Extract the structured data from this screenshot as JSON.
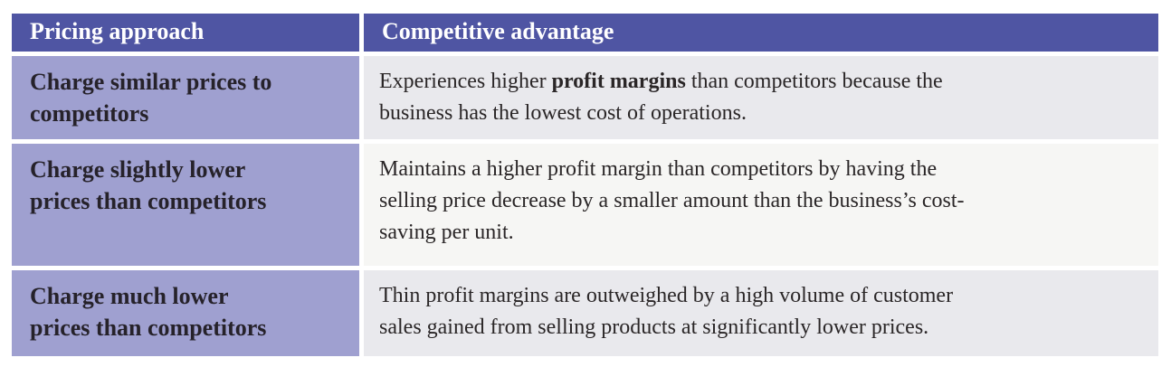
{
  "colors": {
    "header_bg": "#4f55a3",
    "header_text": "#ffffff",
    "approach_bg": "#9fa0d0",
    "approach_text": "#26222a",
    "advantage_bg": "#e9e9ed",
    "advantage_bg_alt": "#f6f6f4",
    "advantage_text": "#2a2627",
    "page_bg": "#ffffff"
  },
  "table": {
    "header": {
      "pricing_approach": "Pricing approach",
      "competitive_advantage": "Competitive advantage"
    },
    "rows": [
      {
        "approach": "Charge similar prices to\ncompetitors",
        "advantage": {
          "before": "Experiences higher ",
          "bold": "profit margins",
          "after": " than competitors because the\nbusiness has the lowest cost of operations."
        }
      },
      {
        "approach": "Charge slightly lower\nprices than competitors",
        "advantage": {
          "before": "Maintains a higher profit margin than competitors by having the\nselling price decrease by a smaller amount than the business’s cost-\nsaving per unit.",
          "bold": "",
          "after": ""
        }
      },
      {
        "approach": "Charge much lower\nprices than competitors",
        "advantage": {
          "before": "Thin profit margins are outweighed by a high volume of customer\nsales gained from selling products at significantly lower prices.",
          "bold": "",
          "after": ""
        }
      }
    ]
  }
}
